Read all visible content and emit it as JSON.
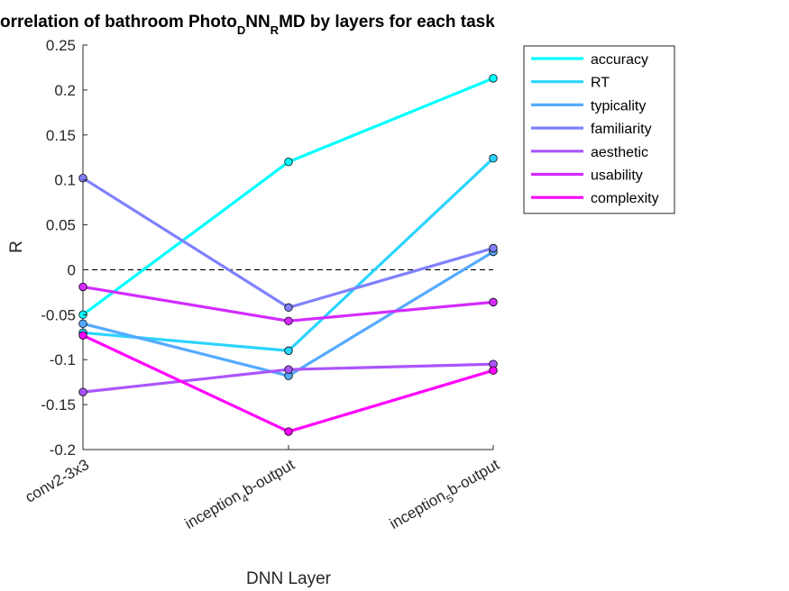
{
  "chart_data": {
    "type": "line",
    "title": {
      "prefix": "orrelation of bathroom Photo",
      "sub1": "D",
      "mid": "NN",
      "sub2": "R",
      "suffix": "MD by layers for each task"
    },
    "xlabel": "DNN Layer",
    "ylabel": "R",
    "ylim": [
      -0.2,
      0.25
    ],
    "yticks": [
      -0.2,
      -0.15,
      -0.1,
      -0.05,
      0,
      0.05,
      0.1,
      0.15,
      0.2,
      0.25
    ],
    "ytick_labels": [
      "-0.2",
      "-0.15",
      "-0.1",
      "-0.05",
      "0",
      "0.05",
      "0.1",
      "0.15",
      "0.2",
      "0.25"
    ],
    "categories": [
      {
        "main": "conv2-3x3",
        "sub": "",
        "after": ""
      },
      {
        "main": "inception",
        "sub": "4",
        "after": "b-output"
      },
      {
        "main": "inception",
        "sub": "5",
        "after": "b-output"
      }
    ],
    "zero_line": true,
    "legend_position": "top-right outside",
    "series": [
      {
        "name": "accuracy",
        "color": "#00FFFF",
        "values": [
          -0.05,
          0.12,
          0.213
        ]
      },
      {
        "name": "RT",
        "color": "#2BD4FF",
        "values": [
          -0.07,
          -0.09,
          0.124
        ]
      },
      {
        "name": "typicality",
        "color": "#55AAFF",
        "values": [
          -0.06,
          -0.118,
          0.02
        ]
      },
      {
        "name": "familiarity",
        "color": "#8080FF",
        "values": [
          0.102,
          -0.042,
          0.024
        ]
      },
      {
        "name": "aesthetic",
        "color": "#AA55FF",
        "values": [
          -0.136,
          -0.111,
          -0.105
        ]
      },
      {
        "name": "usability",
        "color": "#D42BFF",
        "values": [
          -0.019,
          -0.057,
          -0.036
        ]
      },
      {
        "name": "complexity",
        "color": "#FF00FF",
        "values": [
          -0.073,
          -0.18,
          -0.112
        ]
      }
    ]
  }
}
